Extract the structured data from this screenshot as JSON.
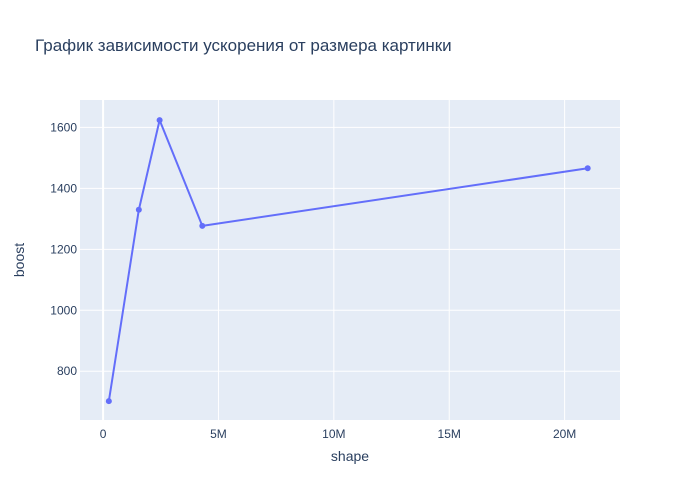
{
  "chart_data": {
    "type": "line",
    "title": "График зависимости ускорения от размера картинки",
    "xlabel": "shape",
    "ylabel": "boost",
    "xlim": [
      -1000000,
      22400000
    ],
    "ylim": [
      640,
      1690
    ],
    "x_ticks": [
      0,
      5000000,
      10000000,
      15000000,
      20000000
    ],
    "x_tick_labels": [
      "0",
      "5M",
      "10M",
      "15M",
      "20M"
    ],
    "y_ticks": [
      800,
      1000,
      1200,
      1400,
      1600
    ],
    "y_tick_labels": [
      "800",
      "1000",
      "1200",
      "1400",
      "1600"
    ],
    "grid": true,
    "series": [
      {
        "color": "#636efa",
        "x": [
          250000,
          1550000,
          2450000,
          4300000,
          21000000
        ],
        "y": [
          702,
          1330,
          1624,
          1277,
          1466
        ]
      }
    ],
    "plot_bgcolor": "#e5ecf6",
    "grid_color": "#ffffff",
    "text_color": "#2a3f5f"
  }
}
